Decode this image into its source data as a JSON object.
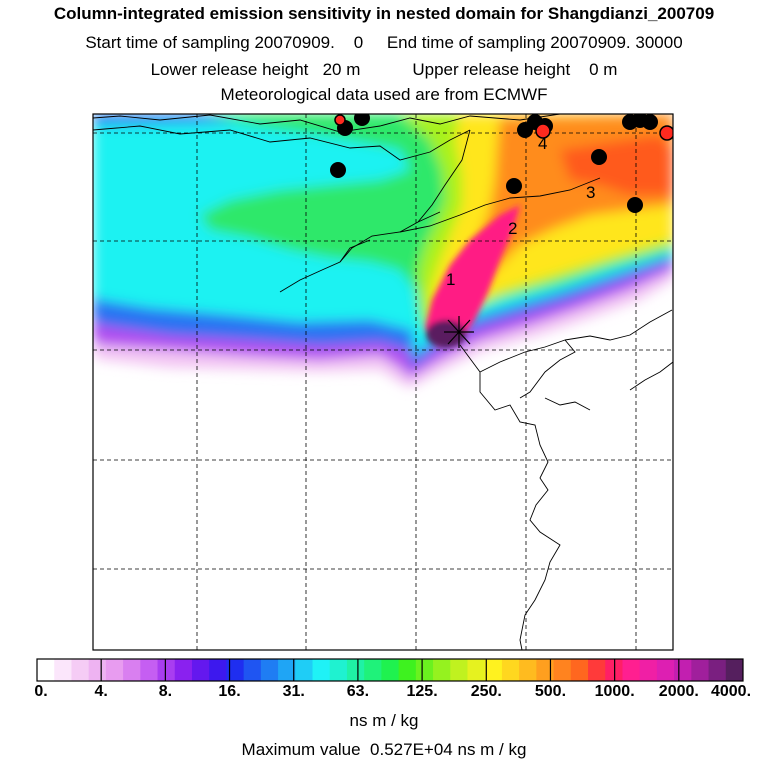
{
  "header": {
    "title": "Column-integrated emission sensitivity in nested domain for Shangdianzi_200709",
    "start_label": "Start time of sampling 20070909.",
    "start_time": "0",
    "end_label": "End time of sampling 20070909. 30000",
    "lower_label": "Lower release height",
    "lower_value": "20 m",
    "upper_label": "Upper release height",
    "upper_value": "0 m",
    "met_line": "Meteorological data used are from ECMWF"
  },
  "map": {
    "labels": [
      "1",
      "2",
      "3",
      "4"
    ]
  },
  "colorbar": {
    "ticks": [
      "0.",
      "4.",
      "8.",
      "16.",
      "31.",
      "63.",
      "125.",
      "250.",
      "500.",
      "1000.",
      "2000.",
      "4000."
    ],
    "colors": [
      "#ffffff",
      "#fbe6fb",
      "#f5ccf5",
      "#eeb3f2",
      "#e89cf0",
      "#d97ff0",
      "#c55ef2",
      "#a93df0",
      "#8a21ef",
      "#6418ee",
      "#3d18ee",
      "#1f2ef0",
      "#1f55f2",
      "#1f7df3",
      "#1fa5f5",
      "#1fcdf6",
      "#1ff2f6",
      "#1ff2d0",
      "#1ff2a5",
      "#1ff27a",
      "#1ff24f",
      "#3ef21f",
      "#6af21f",
      "#95f21f",
      "#c0f21f",
      "#e6f21f",
      "#fff21f",
      "#ffd71f",
      "#ffbb1f",
      "#ff9f1f",
      "#ff831f",
      "#ff671f",
      "#ff3a3a",
      "#ff1f66",
      "#ff1f90",
      "#f01fa5",
      "#dd1fb2",
      "#c21fb0",
      "#a01f9c",
      "#7a1f80",
      "#551f5e"
    ]
  },
  "footer": {
    "units": "ns m / kg",
    "max_label": "Maximum value",
    "max_value": "0.527E+04 ns m / kg"
  }
}
